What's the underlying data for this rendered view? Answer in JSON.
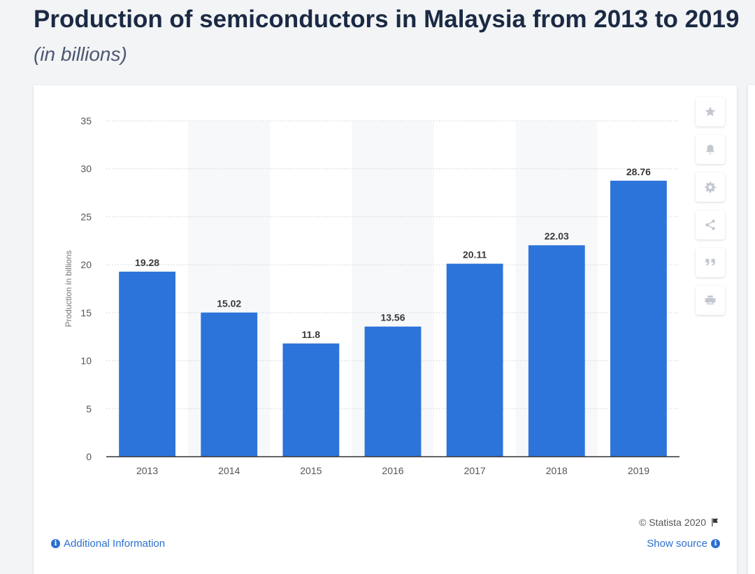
{
  "header": {
    "title": "Production of semiconductors in Malaysia from 2013 to 2019",
    "subtitle": "(in billions)"
  },
  "chart_data": {
    "type": "bar",
    "categories": [
      "2013",
      "2014",
      "2015",
      "2016",
      "2017",
      "2018",
      "2019"
    ],
    "values": [
      19.28,
      15.02,
      11.8,
      13.56,
      20.11,
      22.03,
      28.76
    ],
    "data_labels": [
      "19.28",
      "15.02",
      "11.8",
      "13.56",
      "20.11",
      "22.03",
      "28.76"
    ],
    "ylabel": "Production in billions",
    "ylim": [
      0,
      35
    ],
    "yticks": [
      "0",
      "5",
      "10",
      "15",
      "20",
      "25",
      "30",
      "35"
    ],
    "grid": true,
    "bar_color": "#2d74da",
    "band_color": "#f7f8fa"
  },
  "toolbar": {
    "icons": [
      "star-icon",
      "bell-icon",
      "gear-icon",
      "share-icon",
      "quote-icon",
      "print-icon"
    ]
  },
  "footer": {
    "credit": "© Statista 2020",
    "additional_info": "Additional Information",
    "show_source": "Show source"
  }
}
